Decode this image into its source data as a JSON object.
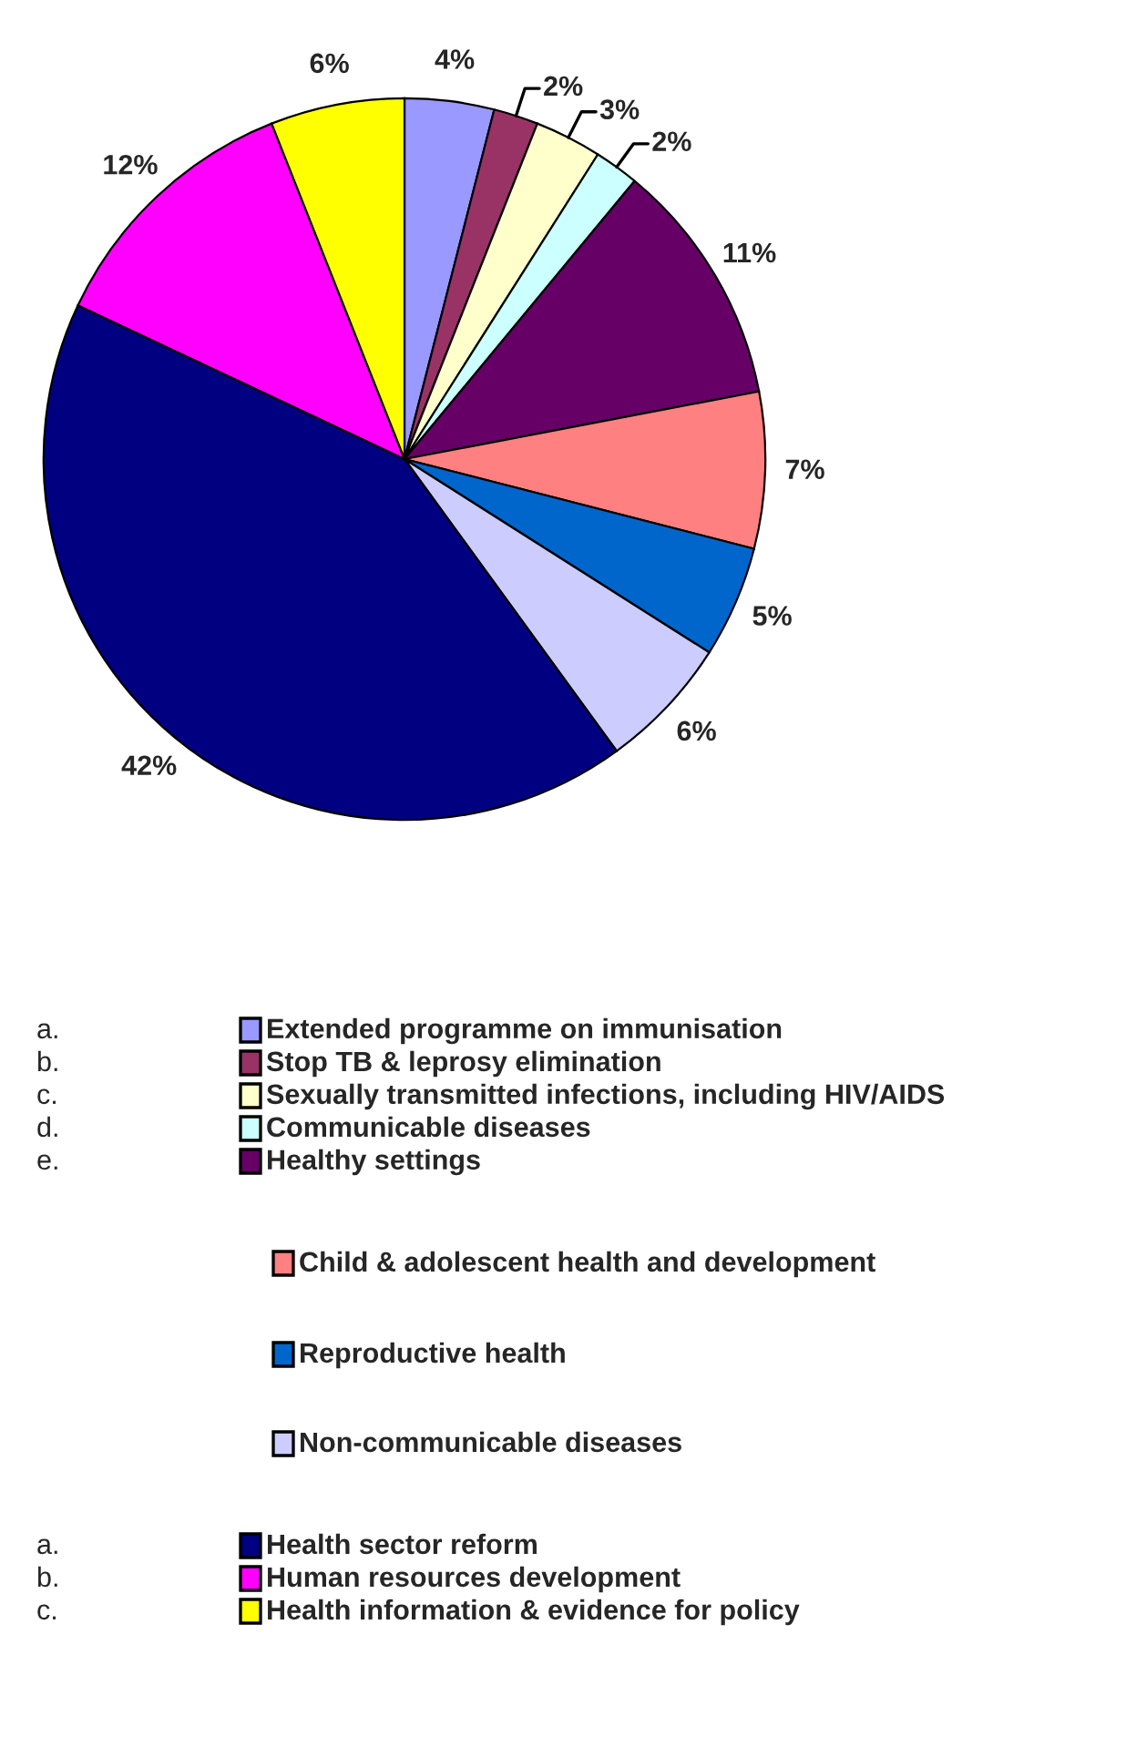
{
  "chart_data": {
    "type": "pie",
    "categories": [
      "Extended programme on immunisation",
      "Stop TB & leprosy elimination",
      "Sexually transmitted infections, including HIV/AIDS",
      "Communicable diseases",
      "Healthy settings",
      "Child & adolescent health and development",
      "Reproductive health",
      "Non-communicable diseases",
      "Health sector reform",
      "Human resources development",
      "Health information & evidence for policy"
    ],
    "values": [
      4,
      2,
      3,
      2,
      11,
      7,
      5,
      6,
      42,
      12,
      6
    ],
    "value_labels": [
      "4%",
      "2%",
      "3%",
      "2%",
      "11%",
      "7%",
      "5%",
      "6%",
      "42%",
      "12%",
      "6%"
    ],
    "colors": [
      "#9999ff",
      "#993366",
      "#ffffcc",
      "#ccffff",
      "#660066",
      "#ff8080",
      "#0066cc",
      "#ccccff",
      "#000080",
      "#ff00ff",
      "#ffff00"
    ],
    "annotations": [
      "a.",
      "b.",
      "c.",
      "d.",
      "e.",
      null,
      null,
      null,
      "a.",
      "b.",
      "c."
    ],
    "legend": "bottom"
  }
}
